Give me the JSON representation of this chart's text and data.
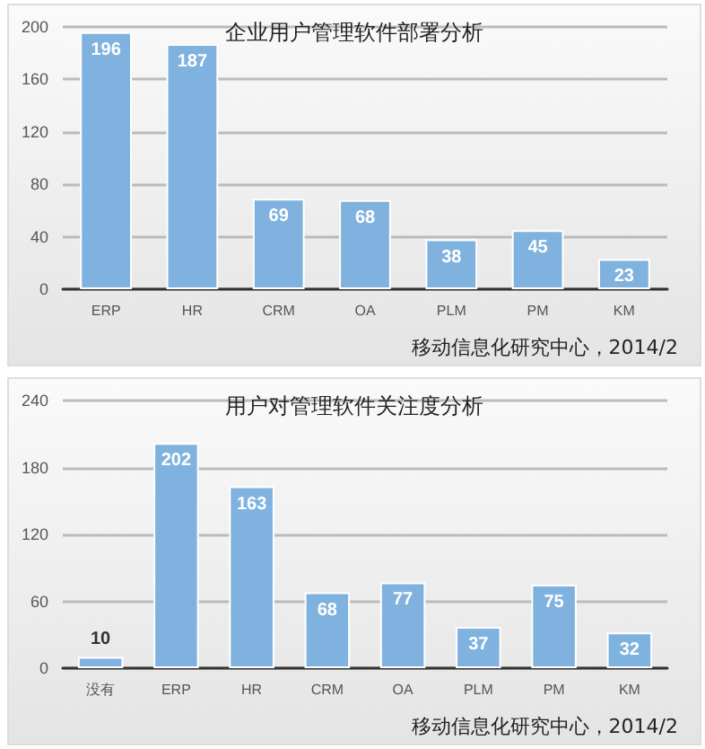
{
  "chart_data": [
    {
      "type": "bar",
      "title": "企业用户管理软件部署分析",
      "categories": [
        "ERP",
        "HR",
        "CRM",
        "OA",
        "PLM",
        "PM",
        "KM"
      ],
      "values": [
        196,
        187,
        69,
        68,
        38,
        45,
        23
      ],
      "color": "#7fb2de",
      "ylim": [
        0,
        200
      ],
      "yticks": [
        0,
        40,
        80,
        120,
        160,
        200
      ],
      "grid": "y",
      "data_labels": true,
      "annotations": [
        "移动信息化研究中心，2014/2"
      ]
    },
    {
      "type": "bar",
      "title": "用户对管理软件关注度分析",
      "categories": [
        "没有",
        "ERP",
        "HR",
        "CRM",
        "OA",
        "PLM",
        "PM",
        "KM"
      ],
      "values": [
        10,
        202,
        163,
        68,
        77,
        37,
        75,
        32
      ],
      "color": "#7fb2de",
      "ylim": [
        0,
        240
      ],
      "yticks": [
        0,
        60,
        120,
        180,
        240
      ],
      "grid": "y",
      "data_labels": true,
      "annotations": [
        "移动信息化研究中心，2014/2"
      ]
    }
  ]
}
